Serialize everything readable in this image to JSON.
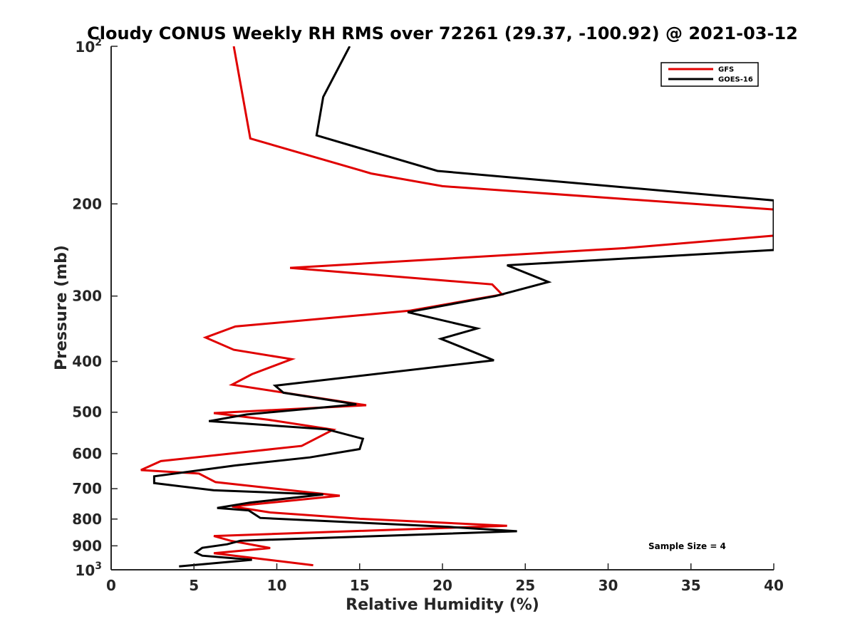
{
  "chart_data": {
    "type": "line",
    "title": "Cloudy CONUS Weekly RH RMS over 72261 (29.37, -100.92) @ 2021-03-12",
    "xlabel": "Relative Humidity (%)",
    "ylabel": "Pressure (mb)",
    "xlim": [
      0,
      40
    ],
    "ylim": [
      100,
      1000
    ],
    "y_scale": "log",
    "y_reversed": true,
    "grid": false,
    "legend_position": "top-right",
    "x_ticks": [
      "0",
      "5",
      "10",
      "15",
      "20",
      "25",
      "30",
      "35",
      "40"
    ],
    "y_ticks": [
      {
        "value": 100,
        "base": "10",
        "exp": "2"
      },
      {
        "value": 200,
        "label": "200"
      },
      {
        "value": 300,
        "label": "300"
      },
      {
        "value": 400,
        "label": "400"
      },
      {
        "value": 500,
        "label": "500"
      },
      {
        "value": 600,
        "label": "600"
      },
      {
        "value": 700,
        "label": "700"
      },
      {
        "value": 800,
        "label": "800"
      },
      {
        "value": 900,
        "label": "900"
      },
      {
        "value": 1000,
        "base": "10",
        "exp": "3"
      }
    ],
    "annotation": "Sample Size = 4",
    "series": [
      {
        "name": "GFS",
        "color": "#e00000",
        "points": [
          [
            7.4,
            100
          ],
          [
            8.4,
            150
          ],
          [
            15.7,
            175
          ],
          [
            20,
            185
          ],
          [
            40,
            205
          ],
          [
            40,
            230
          ],
          [
            31,
            243
          ],
          [
            10.8,
            265
          ],
          [
            23,
            285
          ],
          [
            23.6,
            298
          ],
          [
            18,
            320
          ],
          [
            7.5,
            343
          ],
          [
            5.7,
            360
          ],
          [
            7.4,
            380
          ],
          [
            10.9,
            396
          ],
          [
            8.5,
            423
          ],
          [
            7.3,
            443
          ],
          [
            15.4,
            485
          ],
          [
            6.2,
            502
          ],
          [
            9.5,
            517
          ],
          [
            13.4,
            540
          ],
          [
            11.5,
            580
          ],
          [
            3,
            620
          ],
          [
            1.8,
            645
          ],
          [
            5.3,
            655
          ],
          [
            6.3,
            680
          ],
          [
            13.8,
            722
          ],
          [
            7.3,
            757
          ],
          [
            9.6,
            777
          ],
          [
            15,
            799
          ],
          [
            23.9,
            824
          ],
          [
            6.2,
            862
          ],
          [
            7.2,
            880
          ],
          [
            9.6,
            909
          ],
          [
            6.2,
            930
          ],
          [
            9,
            953
          ],
          [
            12.2,
            980
          ]
        ]
      },
      {
        "name": "GOES-16",
        "color": "#000000",
        "points": [
          [
            14.4,
            100
          ],
          [
            12.8,
            125
          ],
          [
            12.4,
            148
          ],
          [
            19.7,
            173
          ],
          [
            40,
            197
          ],
          [
            40,
            245
          ],
          [
            23.9,
            262
          ],
          [
            26.4,
            282
          ],
          [
            23.2,
            300
          ],
          [
            17.9,
            322
          ],
          [
            22.1,
            346
          ],
          [
            19.9,
            362
          ],
          [
            21.2,
            376
          ],
          [
            23.1,
            398
          ],
          [
            9.9,
            445
          ],
          [
            10.4,
            459
          ],
          [
            14.8,
            483
          ],
          [
            8.2,
            505
          ],
          [
            5.9,
            520
          ],
          [
            13,
            539
          ],
          [
            15.2,
            562
          ],
          [
            15,
            588
          ],
          [
            12,
            610
          ],
          [
            7.5,
            632
          ],
          [
            2.6,
            663
          ],
          [
            2.6,
            683
          ],
          [
            6.2,
            705
          ],
          [
            12.8,
            718
          ],
          [
            8.4,
            744
          ],
          [
            6.4,
            762
          ],
          [
            8.3,
            770
          ],
          [
            9,
            796
          ],
          [
            20.4,
            828
          ],
          [
            24.5,
            844
          ],
          [
            7.8,
            880
          ],
          [
            7,
            894
          ],
          [
            5.5,
            908
          ],
          [
            5.1,
            927
          ],
          [
            5.5,
            940
          ],
          [
            8.5,
            957
          ],
          [
            4.1,
            985
          ]
        ]
      }
    ]
  }
}
